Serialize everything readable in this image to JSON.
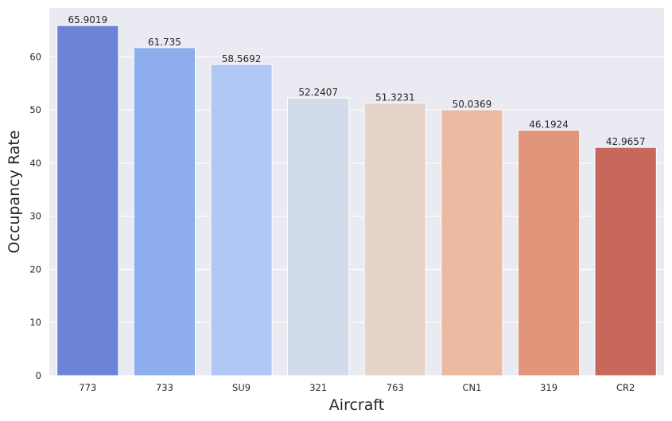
{
  "chart_data": {
    "type": "bar",
    "title": "",
    "xlabel": "Aircraft",
    "ylabel": "Occupancy Rate",
    "categories": [
      "773",
      "733",
      "SU9",
      "321",
      "763",
      "CN1",
      "319",
      "CR2"
    ],
    "values": [
      65.9019,
      61.735,
      58.5692,
      52.2407,
      51.3231,
      50.0369,
      46.1924,
      42.9657
    ],
    "data_labels": [
      "65.9019",
      "61.735",
      "58.5692",
      "52.2407",
      "51.3231",
      "50.0369",
      "46.1924",
      "42.9657"
    ],
    "bar_colors": [
      "#6b84d8",
      "#8eadee",
      "#b2c8f4",
      "#d1dbea",
      "#e6d4cb",
      "#ecbaa1",
      "#e1957b",
      "#c7685b"
    ],
    "ylim": [
      0,
      69.2
    ],
    "yticks": [
      0,
      10,
      20,
      30,
      40,
      50,
      60
    ],
    "grid": true,
    "legend": "none",
    "background_color": "#eaeaf2",
    "grid_color": "#ffffff"
  }
}
